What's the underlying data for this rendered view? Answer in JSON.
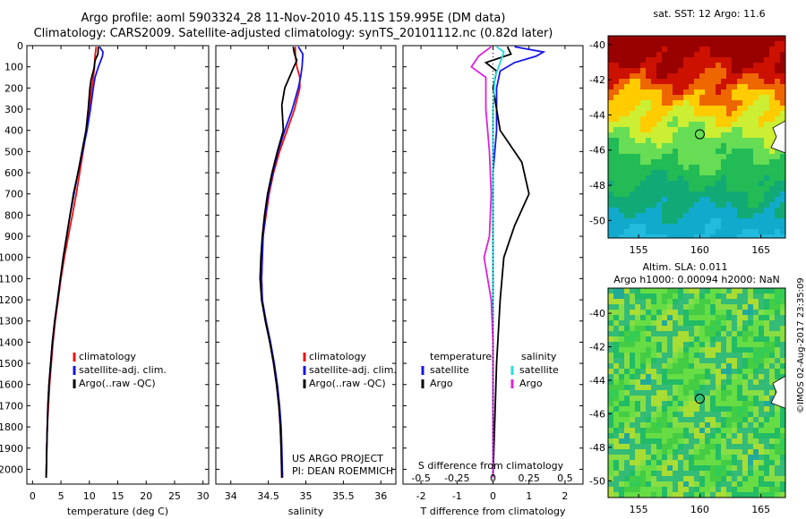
{
  "header": {
    "title_line1": "Argo profile: aoml 5903324_28 11-Nov-2010 45.11S 159.995E (DM data)",
    "title_line2": "Climatology: CARS2009. Satellite-adjusted climatology: synTS_20101112.nc (0.82d later)"
  },
  "credits": {
    "project": "US ARGO PROJECT",
    "pi": "PI: DEAN ROEMMICH",
    "stamp": "©IMOS 02-Aug-2017 23:35:09"
  },
  "map_titles": {
    "sst": "sat. SST: 12 Argo: 11.6",
    "sla_line1": "Altim. SLA: 0.011",
    "sla_line2": "Argo h1000: 0.00094 h2000: NaN"
  },
  "colors": {
    "climatology": "#ee1111",
    "satellite": "#1515e8",
    "argo": "#000000",
    "salinity_satellite": "#22dddd",
    "salinity_argo": "#dd22dd"
  },
  "chart_data": [
    {
      "type": "line",
      "id": "temperature",
      "xlabel": "temperature (deg C)",
      "ylabel": "",
      "xlim": [
        -1,
        31
      ],
      "ylim": [
        2070,
        0
      ],
      "xticks": [
        0,
        5,
        10,
        15,
        20,
        25,
        30
      ],
      "yticks": [
        0,
        100,
        200,
        300,
        400,
        500,
        600,
        700,
        800,
        900,
        1000,
        1100,
        1200,
        1300,
        1400,
        1500,
        1600,
        1700,
        1800,
        1900,
        2000
      ],
      "legend": [
        "climatology",
        "satellite-adj. clim.",
        "Argo(..raw -QC)"
      ],
      "series": [
        {
          "name": "climatology",
          "color_key": "climatology",
          "points": [
            [
              11.2,
              5
            ],
            [
              11.0,
              50
            ],
            [
              10.9,
              100
            ],
            [
              10.7,
              150
            ],
            [
              10.4,
              200
            ],
            [
              10.0,
              300
            ],
            [
              9.5,
              400
            ],
            [
              8.9,
              500
            ],
            [
              8.3,
              600
            ],
            [
              7.7,
              700
            ],
            [
              7.0,
              800
            ],
            [
              6.3,
              900
            ],
            [
              5.6,
              1000
            ],
            [
              5.0,
              1100
            ],
            [
              4.5,
              1200
            ],
            [
              4.0,
              1300
            ],
            [
              3.6,
              1400
            ],
            [
              3.3,
              1500
            ],
            [
              3.0,
              1600
            ],
            [
              2.8,
              1700
            ],
            [
              2.6,
              1800
            ],
            [
              2.5,
              1900
            ],
            [
              2.4,
              2040
            ]
          ]
        },
        {
          "name": "satellite-adj. clim.",
          "color_key": "satellite",
          "points": [
            [
              11.8,
              5
            ],
            [
              12.4,
              30
            ],
            [
              12.3,
              50
            ],
            [
              11.6,
              100
            ],
            [
              11.0,
              150
            ],
            [
              10.7,
              200
            ],
            [
              10.2,
              300
            ],
            [
              9.6,
              400
            ],
            [
              8.8,
              500
            ],
            [
              8.0,
              600
            ],
            [
              7.3,
              700
            ],
            [
              6.6,
              800
            ],
            [
              6.0,
              900
            ],
            [
              5.4,
              1000
            ],
            [
              4.9,
              1100
            ],
            [
              4.4,
              1200
            ],
            [
              3.9,
              1300
            ],
            [
              3.5,
              1400
            ],
            [
              3.2,
              1500
            ],
            [
              2.9,
              1600
            ],
            [
              2.7,
              1700
            ],
            [
              2.6,
              1800
            ],
            [
              2.5,
              1900
            ],
            [
              2.4,
              2040
            ]
          ]
        },
        {
          "name": "Argo(..raw -QC)",
          "color_key": "argo",
          "points": [
            [
              11.6,
              5
            ],
            [
              11.5,
              40
            ],
            [
              11.0,
              70
            ],
            [
              10.8,
              110
            ],
            [
              10.3,
              160
            ],
            [
              10.1,
              200
            ],
            [
              9.8,
              300
            ],
            [
              9.4,
              400
            ],
            [
              8.7,
              500
            ],
            [
              8.0,
              600
            ],
            [
              7.2,
              700
            ],
            [
              6.6,
              800
            ],
            [
              6.0,
              900
            ],
            [
              5.4,
              1000
            ],
            [
              4.9,
              1100
            ],
            [
              4.4,
              1200
            ],
            [
              3.9,
              1300
            ],
            [
              3.5,
              1400
            ],
            [
              3.2,
              1500
            ],
            [
              2.9,
              1600
            ],
            [
              2.7,
              1700
            ],
            [
              2.6,
              1800
            ],
            [
              2.5,
              1900
            ],
            [
              2.4,
              2040
            ]
          ]
        }
      ]
    },
    {
      "type": "line",
      "id": "salinity",
      "xlabel": "salinity",
      "ylabel": "",
      "xlim": [
        33.8,
        36.2
      ],
      "ylim": [
        2070,
        0
      ],
      "xticks": [
        34,
        34.5,
        35,
        35.5,
        36
      ],
      "legend": [
        "climatology",
        "satellite-adj. clim.",
        "Argo(..raw -QC)"
      ],
      "series": [
        {
          "name": "climatology",
          "color_key": "climatology",
          "points": [
            [
              34.86,
              5
            ],
            [
              34.86,
              50
            ],
            [
              34.88,
              100
            ],
            [
              34.92,
              150
            ],
            [
              34.92,
              200
            ],
            [
              34.85,
              300
            ],
            [
              34.75,
              400
            ],
            [
              34.65,
              500
            ],
            [
              34.57,
              600
            ],
            [
              34.51,
              700
            ],
            [
              34.47,
              800
            ],
            [
              34.43,
              900
            ],
            [
              34.42,
              1000
            ],
            [
              34.41,
              1100
            ],
            [
              34.42,
              1200
            ],
            [
              34.46,
              1300
            ],
            [
              34.52,
              1400
            ],
            [
              34.57,
              1500
            ],
            [
              34.61,
              1600
            ],
            [
              34.64,
              1700
            ],
            [
              34.66,
              1800
            ],
            [
              34.67,
              1900
            ],
            [
              34.68,
              2040
            ]
          ]
        },
        {
          "name": "satellite-adj. clim.",
          "color_key": "satellite",
          "points": [
            [
              34.9,
              5
            ],
            [
              34.96,
              40
            ],
            [
              34.95,
              100
            ],
            [
              34.93,
              150
            ],
            [
              34.9,
              200
            ],
            [
              34.82,
              300
            ],
            [
              34.72,
              400
            ],
            [
              34.63,
              500
            ],
            [
              34.56,
              600
            ],
            [
              34.5,
              700
            ],
            [
              34.46,
              800
            ],
            [
              34.43,
              900
            ],
            [
              34.42,
              1000
            ],
            [
              34.41,
              1100
            ],
            [
              34.42,
              1200
            ],
            [
              34.47,
              1300
            ],
            [
              34.53,
              1400
            ],
            [
              34.58,
              1500
            ],
            [
              34.62,
              1600
            ],
            [
              34.65,
              1700
            ],
            [
              34.67,
              1800
            ],
            [
              34.68,
              1900
            ],
            [
              34.69,
              2040
            ]
          ]
        },
        {
          "name": "Argo(..raw -QC)",
          "color_key": "argo",
          "points": [
            [
              34.83,
              5
            ],
            [
              34.85,
              40
            ],
            [
              34.88,
              70
            ],
            [
              34.84,
              100
            ],
            [
              34.78,
              150
            ],
            [
              34.72,
              200
            ],
            [
              34.68,
              280
            ],
            [
              34.7,
              400
            ],
            [
              34.62,
              500
            ],
            [
              34.55,
              600
            ],
            [
              34.49,
              700
            ],
            [
              34.45,
              800
            ],
            [
              34.42,
              900
            ],
            [
              34.4,
              1000
            ],
            [
              34.39,
              1100
            ],
            [
              34.41,
              1200
            ],
            [
              34.46,
              1300
            ],
            [
              34.52,
              1400
            ],
            [
              34.57,
              1500
            ],
            [
              34.61,
              1600
            ],
            [
              34.64,
              1700
            ],
            [
              34.66,
              1800
            ],
            [
              34.67,
              1900
            ],
            [
              34.68,
              2040
            ]
          ]
        }
      ]
    },
    {
      "type": "line",
      "id": "difference",
      "xlabel": "T difference from climatology",
      "x2label": "S difference from climatology",
      "ylabel": "",
      "xlim": [
        -2.5,
        2.5
      ],
      "ylim": [
        2070,
        0
      ],
      "xticks": [
        -2,
        -1,
        0,
        1,
        2
      ],
      "x2ticks": [
        -0.5,
        -0.25,
        0,
        0.25,
        0.5
      ],
      "legend_groups": [
        {
          "title": "temperature",
          "items": [
            "satellite",
            "Argo"
          ]
        },
        {
          "title": "salinity",
          "items": [
            "satellite",
            "Argo"
          ]
        }
      ],
      "series": [
        {
          "name": "temperature satellite",
          "color_key": "satellite",
          "points": [
            [
              0.6,
              5
            ],
            [
              1.4,
              30
            ],
            [
              1.2,
              50
            ],
            [
              0.6,
              80
            ],
            [
              0.2,
              120
            ],
            [
              0.1,
              200
            ],
            [
              0.1,
              400
            ],
            [
              0.0,
              600
            ],
            [
              0.0,
              1000
            ],
            [
              0.0,
              2040
            ]
          ]
        },
        {
          "name": "temperature Argo",
          "color_key": "argo",
          "points": [
            [
              0.4,
              5
            ],
            [
              0.5,
              40
            ],
            [
              -0.2,
              80
            ],
            [
              0.1,
              120
            ],
            [
              0.0,
              200
            ],
            [
              0.2,
              400
            ],
            [
              0.8,
              550
            ],
            [
              1.0,
              700
            ],
            [
              0.6,
              850
            ],
            [
              0.3,
              1000
            ],
            [
              0.2,
              1200
            ],
            [
              0.1,
              1500
            ],
            [
              0.0,
              2040
            ]
          ]
        },
        {
          "name": "salinity satellite",
          "color_key": "salinity_satellite",
          "points": [
            [
              0.1,
              5
            ],
            [
              0.3,
              30
            ],
            [
              0.2,
              80
            ],
            [
              0.05,
              150
            ],
            [
              0.0,
              300
            ],
            [
              0.0,
              600
            ],
            [
              0.0,
              1000
            ],
            [
              0.0,
              2040
            ]
          ]
        },
        {
          "name": "salinity Argo",
          "color_key": "salinity_argo",
          "points": [
            [
              -0.05,
              5
            ],
            [
              -0.4,
              50
            ],
            [
              -0.6,
              100
            ],
            [
              -0.2,
              150
            ],
            [
              -0.2,
              300
            ],
            [
              -0.1,
              500
            ],
            [
              -0.05,
              700
            ],
            [
              -0.1,
              900
            ],
            [
              -0.25,
              1000
            ],
            [
              -0.15,
              1100
            ],
            [
              -0.05,
              1200
            ],
            [
              0.0,
              1400
            ],
            [
              0.0,
              2040
            ]
          ]
        }
      ]
    },
    {
      "type": "heatmap",
      "id": "sst_map",
      "title": "sat. SST: 12 Argo: 11.6",
      "xlim": [
        152.5,
        167
      ],
      "ylim": [
        -51,
        -39.5
      ],
      "xticks": [
        155,
        160,
        165
      ],
      "yticks": [
        -40,
        -42,
        -44,
        -46,
        -48,
        -50
      ],
      "marker": [
        160,
        -45.1
      ],
      "colors_by_latitude": [
        [
          -39.5,
          "#990000"
        ],
        [
          -41,
          "#cc1100"
        ],
        [
          -42,
          "#ee6600"
        ],
        [
          -43,
          "#ffcc00"
        ],
        [
          -44,
          "#ccee33"
        ],
        [
          -45,
          "#66dd55"
        ],
        [
          -46.5,
          "#22bb55"
        ],
        [
          -48,
          "#11aa77"
        ],
        [
          -49.5,
          "#11aacc"
        ],
        [
          -51,
          "#22bbdd"
        ]
      ]
    },
    {
      "type": "heatmap",
      "id": "sla_map",
      "title": "Altim. SLA: 0.011",
      "xlim": [
        152.5,
        167
      ],
      "ylim": [
        -51,
        -38.5
      ],
      "xticks": [
        155,
        160,
        165
      ],
      "yticks": [
        -40,
        -42,
        -44,
        -46,
        -48,
        -50
      ],
      "marker": [
        160,
        -45.1
      ],
      "base_color": "#33cc55"
    }
  ]
}
